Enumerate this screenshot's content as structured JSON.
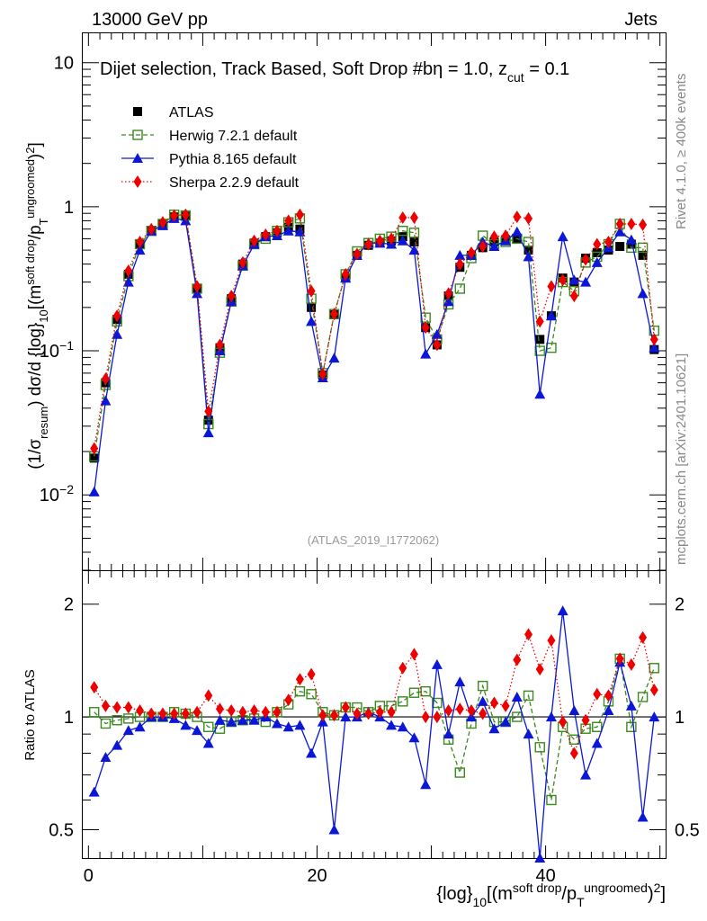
{
  "header": {
    "left": "13000 GeV pp",
    "right": "Jets"
  },
  "side": {
    "rivet": "Rivet 4.1.0, ≥ 400k events",
    "mcplots": "mcplots.cern.ch [arXiv:2401.10621]"
  },
  "main_title": "Dijet selection, Track Based, Soft Drop #bη = 1.0, z_cut = 0.1",
  "watermark": "(ATLAS_2019_I1772062)",
  "ylabel_main": "(1/σ_{resum}) dσ/d {log}_10[(m^{soft drop}/p_T^{ungroomed})^2]",
  "ylabel_ratio": "Ratio to ATLAS",
  "xlabel": "{log}_10[(m^{soft drop}/p_T^{ungroomed})^2]",
  "legend": [
    {
      "key": "atlas",
      "label": "ATLAS"
    },
    {
      "key": "herwig",
      "label": "Herwig 7.2.1 default"
    },
    {
      "key": "pythia",
      "label": "Pythia 8.165 default"
    },
    {
      "key": "sherpa",
      "label": "Sherpa 2.2.9 default"
    }
  ],
  "colors": {
    "atlas": "#000000",
    "herwig": "#3a8a1e",
    "pythia": "#0b16d6",
    "sherpa": "#ee0000"
  },
  "chart_data": {
    "type": "scatter",
    "x": [
      0.5,
      1.5,
      2.5,
      3.5,
      4.5,
      5.5,
      6.5,
      7.5,
      8.5,
      9.5,
      10.5,
      11.5,
      12.5,
      13.5,
      14.5,
      15.5,
      16.5,
      17.5,
      18.5,
      19.5,
      20.5,
      21.5,
      22.5,
      23.5,
      24.5,
      25.5,
      26.5,
      27.5,
      28.5,
      29.5,
      30.5,
      31.5,
      32.5,
      33.5,
      34.5,
      35.5,
      36.5,
      37.5,
      38.5,
      39.5,
      40.5,
      41.5,
      42.5,
      43.5,
      44.5,
      45.5,
      46.5,
      47.5,
      48.5,
      49.5
    ],
    "xlim": [
      -0.5,
      50.5
    ],
    "xticks": [
      0,
      20,
      40
    ],
    "main": {
      "yscale": "log",
      "ylim": [
        0.003,
        16
      ],
      "yticks": [
        {
          "v": 0.01,
          "t": "10^-2"
        },
        {
          "v": 0.1,
          "t": "10^-1"
        },
        {
          "v": 1,
          "t": "1"
        },
        {
          "v": 10,
          "t": "10"
        }
      ],
      "series": [
        {
          "key": "atlas",
          "name": "ATLAS",
          "values": [
            0.018,
            0.06,
            0.165,
            0.34,
            0.55,
            0.68,
            0.76,
            0.85,
            0.86,
            0.27,
            0.033,
            0.105,
            0.23,
            0.4,
            0.56,
            0.62,
            0.66,
            0.72,
            0.7,
            0.2,
            0.068,
            0.178,
            0.32,
            0.46,
            0.54,
            0.56,
            0.58,
            0.62,
            0.57,
            0.145,
            0.11,
            0.24,
            0.38,
            0.46,
            0.52,
            0.57,
            0.59,
            0.6,
            0.5,
            0.12,
            0.175,
            0.32,
            0.3,
            0.44,
            0.48,
            0.5,
            0.53,
            0.55,
            0.46,
            0.102
          ]
        },
        {
          "key": "herwig",
          "name": "Herwig 7.2.1 default",
          "values": [
            0.0185,
            0.058,
            0.16,
            0.33,
            0.55,
            0.68,
            0.76,
            0.88,
            0.87,
            0.27,
            0.031,
            0.097,
            0.22,
            0.39,
            0.55,
            0.6,
            0.68,
            0.78,
            0.83,
            0.23,
            0.07,
            0.18,
            0.34,
            0.49,
            0.56,
            0.6,
            0.62,
            0.68,
            0.66,
            0.17,
            0.12,
            0.21,
            0.27,
            0.44,
            0.63,
            0.55,
            0.57,
            0.6,
            0.57,
            0.1,
            0.105,
            0.3,
            0.26,
            0.41,
            0.45,
            0.55,
            0.76,
            0.52,
            0.52,
            0.138
          ]
        },
        {
          "key": "pythia",
          "name": "Pythia 8.165 default",
          "values": [
            0.0105,
            0.045,
            0.13,
            0.3,
            0.5,
            0.68,
            0.74,
            0.83,
            0.8,
            0.25,
            0.027,
            0.1,
            0.22,
            0.39,
            0.55,
            0.62,
            0.63,
            0.68,
            0.67,
            0.16,
            0.065,
            0.089,
            0.32,
            0.46,
            0.56,
            0.56,
            0.55,
            0.58,
            0.5,
            0.095,
            0.13,
            0.22,
            0.46,
            0.46,
            0.57,
            0.53,
            0.58,
            0.67,
            0.45,
            0.05,
            0.175,
            0.62,
            0.31,
            0.3,
            0.41,
            0.52,
            0.67,
            0.59,
            0.25,
            0.105
          ]
        },
        {
          "key": "sherpa",
          "name": "Sherpa 2.2.9 default",
          "values": [
            0.021,
            0.064,
            0.175,
            0.36,
            0.57,
            0.7,
            0.78,
            0.87,
            0.88,
            0.28,
            0.038,
            0.11,
            0.24,
            0.41,
            0.58,
            0.64,
            0.68,
            0.8,
            0.88,
            0.26,
            0.069,
            0.18,
            0.34,
            0.47,
            0.55,
            0.58,
            0.6,
            0.84,
            0.84,
            0.145,
            0.11,
            0.25,
            0.4,
            0.48,
            0.53,
            0.62,
            0.63,
            0.85,
            0.83,
            0.16,
            0.28,
            0.31,
            0.24,
            0.43,
            0.55,
            0.57,
            0.76,
            0.76,
            0.75,
            0.12
          ]
        }
      ]
    },
    "ratio": {
      "yscale": "log",
      "ylim": [
        0.42,
        2.45
      ],
      "yticks": [
        {
          "v": 0.5,
          "t": "0.5"
        },
        {
          "v": 1,
          "t": "1"
        },
        {
          "v": 2,
          "t": "2"
        }
      ],
      "series": [
        {
          "key": "herwig",
          "name": "Herwig 7.2.1 default",
          "values": [
            1.03,
            0.96,
            0.98,
            0.99,
            1.0,
            1.0,
            1.0,
            1.03,
            1.02,
            1.0,
            0.94,
            0.93,
            0.97,
            0.98,
            0.99,
            0.97,
            1.03,
            1.08,
            1.17,
            1.15,
            1.03,
            1.01,
            1.06,
            1.06,
            1.03,
            1.07,
            1.07,
            1.1,
            1.16,
            1.17,
            1.09,
            0.87,
            0.71,
            0.96,
            1.21,
            0.97,
            0.97,
            1.0,
            1.14,
            0.83,
            0.6,
            0.94,
            0.87,
            0.93,
            0.94,
            1.1,
            1.43,
            0.94,
            1.13,
            1.35
          ]
        },
        {
          "key": "pythia",
          "name": "Pythia 8.165 default",
          "values": [
            0.63,
            0.78,
            0.84,
            0.92,
            0.94,
            1.0,
            1.0,
            0.99,
            0.95,
            0.92,
            0.85,
            0.98,
            0.97,
            0.98,
            0.98,
            1.0,
            0.96,
            0.94,
            0.95,
            0.8,
            0.97,
            0.5,
            1.0,
            1.0,
            1.03,
            1.0,
            0.95,
            0.94,
            0.88,
            0.66,
            1.38,
            0.9,
            1.24,
            1.0,
            1.1,
            0.93,
            0.97,
            1.13,
            0.9,
            0.42,
            1.0,
            1.92,
            1.04,
            0.7,
            0.85,
            1.04,
            1.4,
            1.07,
            0.54,
            1.0
          ]
        },
        {
          "key": "sherpa",
          "name": "Sherpa 2.2.9 default",
          "values": [
            1.2,
            1.07,
            1.06,
            1.06,
            1.04,
            1.02,
            1.02,
            1.02,
            1.02,
            1.03,
            1.14,
            1.05,
            1.04,
            1.03,
            1.04,
            1.03,
            1.03,
            1.11,
            1.26,
            1.3,
            1.01,
            1.01,
            1.06,
            1.02,
            1.02,
            1.03,
            1.03,
            1.35,
            1.47,
            1.0,
            1.0,
            1.04,
            1.05,
            1.04,
            1.02,
            1.09,
            1.07,
            1.42,
            1.66,
            1.34,
            1.6,
            0.97,
            0.8,
            0.98,
            1.15,
            1.14,
            1.43,
            1.38,
            1.63,
            1.18
          ]
        }
      ]
    }
  }
}
